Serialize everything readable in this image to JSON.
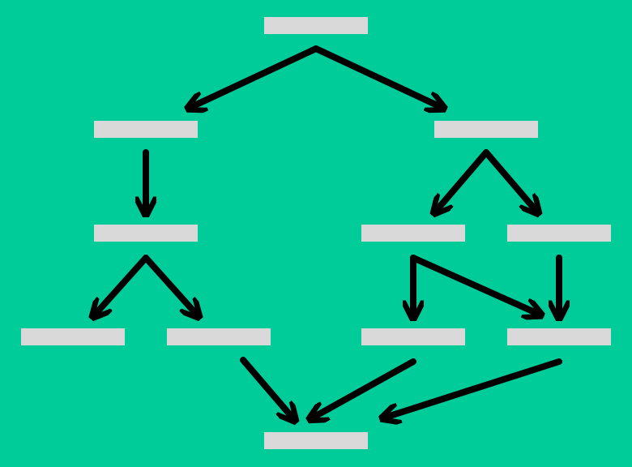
{
  "colors": {
    "background": "#00cc99",
    "node_fill": "#d9d9d9",
    "arrow": "#000000"
  },
  "nodes": [
    {
      "id": "root",
      "label": ""
    },
    {
      "id": "l1",
      "label": ""
    },
    {
      "id": "r1",
      "label": ""
    },
    {
      "id": "l2",
      "label": ""
    },
    {
      "id": "r2a",
      "label": ""
    },
    {
      "id": "r2b",
      "label": ""
    },
    {
      "id": "l3a",
      "label": ""
    },
    {
      "id": "l3b",
      "label": ""
    },
    {
      "id": "r3a",
      "label": ""
    },
    {
      "id": "r3b",
      "label": ""
    },
    {
      "id": "bottom",
      "label": ""
    }
  ],
  "edges": [
    {
      "from": "root",
      "to": "l1"
    },
    {
      "from": "root",
      "to": "r1"
    },
    {
      "from": "l1",
      "to": "l2"
    },
    {
      "from": "r1",
      "to": "r2a"
    },
    {
      "from": "r1",
      "to": "r2b"
    },
    {
      "from": "l2",
      "to": "l3a"
    },
    {
      "from": "l2",
      "to": "l3b"
    },
    {
      "from": "r2a",
      "to": "r3a"
    },
    {
      "from": "r2a",
      "to": "r3b"
    },
    {
      "from": "r2b",
      "to": "r3b"
    },
    {
      "from": "l3b",
      "to": "bottom"
    },
    {
      "from": "r3a",
      "to": "bottom"
    },
    {
      "from": "r3b",
      "to": "bottom"
    }
  ]
}
